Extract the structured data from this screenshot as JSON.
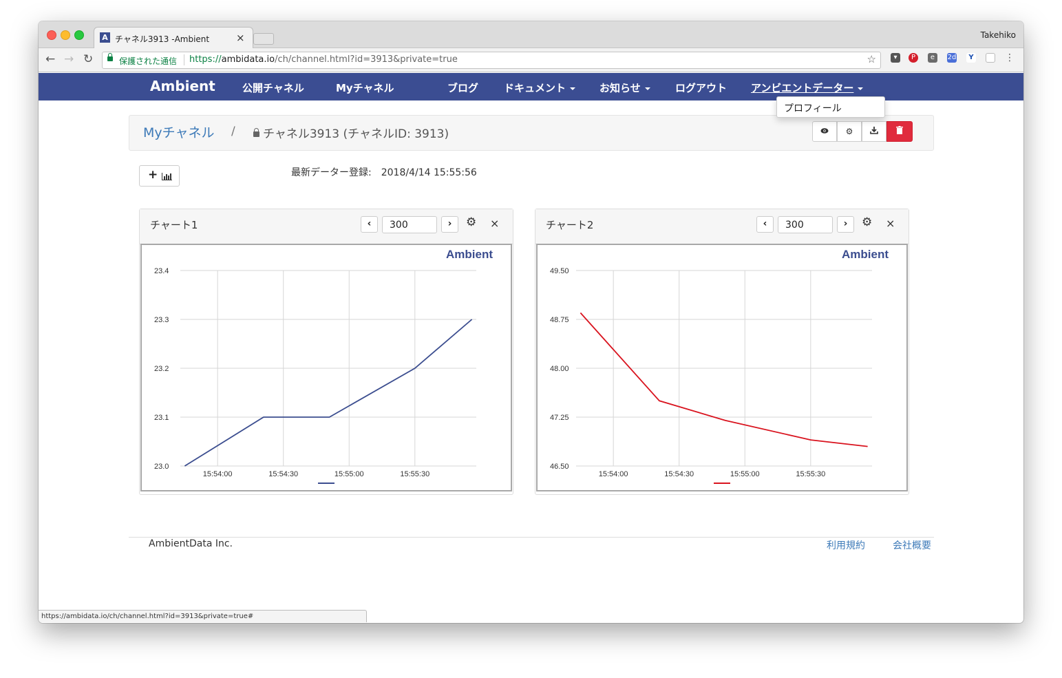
{
  "browser": {
    "tab_title": "チャネル3913 -Ambient",
    "tab_favicon": "A",
    "profile_name": "Takehiko",
    "secure_label": "保護された通信",
    "url_scheme": "https://",
    "url_host": "ambidata.io",
    "url_path": "/ch/channel.html?id=3913&private=true",
    "status_url": "https://ambidata.io/ch/channel.html?id=3913&private=true#"
  },
  "navbar": {
    "brand": "Ambient",
    "items": [
      "公開チャネル",
      "Myチャネル",
      "ブログ",
      "ドキュメント",
      "お知らせ",
      "ログアウト",
      "アンビエントデーター"
    ],
    "dropdown_item": "プロフィール",
    "bg_color": "#3b4d92"
  },
  "breadcrumb": {
    "parent": "Myチャネル",
    "separator": "/",
    "current": "チャネル3913 (チャネルID: 3913)"
  },
  "toolbar_icons": [
    "eye-icon",
    "gear-icon",
    "download-icon",
    "trash-icon"
  ],
  "last_data": {
    "label": "最新データー登録:",
    "value": "2018/4/14 15:55:56"
  },
  "charts": [
    {
      "title": "チャート1",
      "range": "300",
      "watermark": "Ambient"
    },
    {
      "title": "チャート2",
      "range": "300",
      "watermark": "Ambient"
    }
  ],
  "chart_data": [
    {
      "type": "line",
      "title": "",
      "x": [
        "15:53:45",
        "15:54:21",
        "15:54:51",
        "15:55:30",
        "15:55:56"
      ],
      "xticks": [
        "15:54:00",
        "15:54:30",
        "15:55:00",
        "15:55:30"
      ],
      "yticks": [
        "23.0",
        "23.1",
        "23.2",
        "23.3",
        "23.4"
      ],
      "ylim": [
        23.0,
        23.4
      ],
      "series": [
        {
          "values": [
            23.0,
            23.1,
            23.1,
            23.2,
            23.3
          ],
          "color": "#3b4d8f"
        }
      ],
      "grid": true
    },
    {
      "type": "line",
      "title": "",
      "x": [
        "15:53:45",
        "15:54:21",
        "15:54:51",
        "15:55:30",
        "15:55:56"
      ],
      "xticks": [
        "15:54:00",
        "15:54:30",
        "15:55:00",
        "15:55:30"
      ],
      "yticks": [
        "46.50",
        "47.25",
        "48.00",
        "48.75",
        "49.50"
      ],
      "ylim": [
        46.5,
        49.5
      ],
      "series": [
        {
          "values": [
            48.85,
            47.5,
            47.2,
            46.9,
            46.8
          ],
          "color": "#d9131e"
        }
      ],
      "grid": true
    }
  ],
  "footer": {
    "company": "AmbientData Inc.",
    "links": [
      "利用規約",
      "会社概要"
    ]
  }
}
